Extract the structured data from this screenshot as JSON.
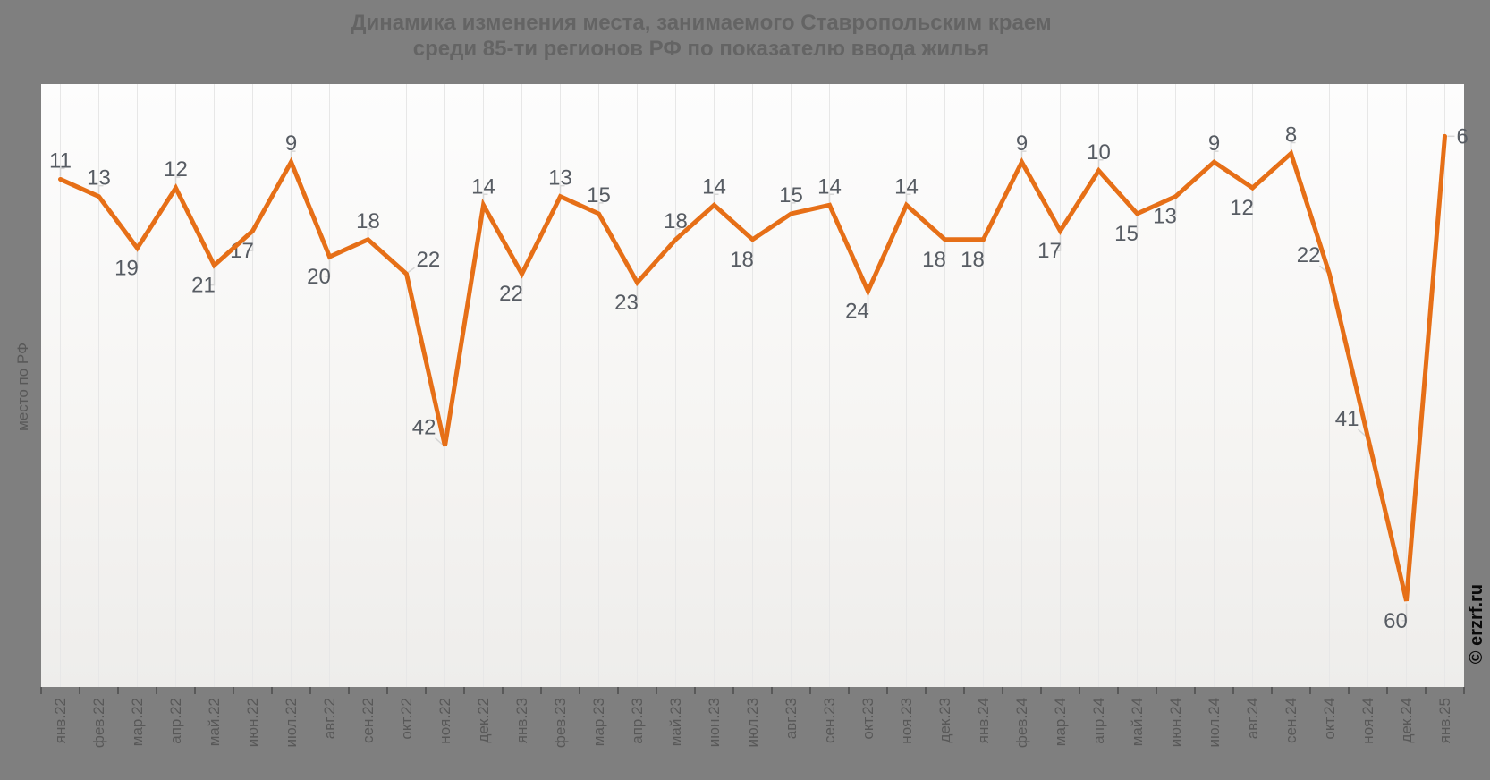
{
  "title": {
    "line1": "Динамика изменения места, занимаемого Ставропольским краем",
    "line2": "среди 85-ти регионов РФ по показателю ввода жилья"
  },
  "y_axis_label": "место по РФ",
  "watermark": "© erzrf.ru",
  "colors": {
    "background": "#7f7f7f",
    "plot_top": "#fdfdfd",
    "plot_bottom": "#eeedeb",
    "line": "#e66f17",
    "grid": "#e7e7e7",
    "tick": "#4d4d4d",
    "data_label": "#575c63",
    "axis_label": "#585858",
    "title_text": "#646464",
    "leader": "#d6d6d6",
    "watermark_text": "#0a0a0a"
  },
  "chart_data": {
    "type": "line",
    "title": "Динамика изменения места, занимаемого Ставропольским краем среди 85-ти регионов РФ по показателю ввода жилья",
    "xlabel": "",
    "ylabel": "место по РФ",
    "categories": [
      "янв.22",
      "фев.22",
      "мар.22",
      "апр.22",
      "май.22",
      "июн.22",
      "июл.22",
      "авг.22",
      "сен.22",
      "окт.22",
      "ноя.22",
      "дек.22",
      "янв.23",
      "фев.23",
      "мар.23",
      "апр.23",
      "май.23",
      "июн.23",
      "июл.23",
      "авг.23",
      "сен.23",
      "окт.23",
      "ноя.23",
      "дек.23",
      "янв.24",
      "фев.24",
      "мар.24",
      "апр.24",
      "май.24",
      "июн.24",
      "июл.24",
      "авг.24",
      "сен.24",
      "окт.24",
      "ноя.24",
      "дек.24",
      "янв.25"
    ],
    "values": [
      11,
      13,
      19,
      12,
      21,
      17,
      9,
      20,
      18,
      22,
      42,
      14,
      22,
      13,
      15,
      23,
      18,
      14,
      18,
      15,
      14,
      24,
      14,
      18,
      18,
      9,
      17,
      10,
      15,
      13,
      9,
      12,
      8,
      22,
      41,
      60,
      6
    ],
    "series_name": "место по РФ",
    "y_inverted": true,
    "ylim": [
      0,
      70
    ],
    "grid": "vertical-only",
    "legend": "none",
    "label_positions": [
      "above",
      "above",
      "below",
      "above",
      "below",
      "below",
      "above",
      "below",
      "above",
      "upright",
      "left",
      "above",
      "below",
      "above",
      "above",
      "below",
      "above",
      "above",
      "below",
      "above",
      "above",
      "below",
      "above",
      "below",
      "below",
      "above",
      "below",
      "above",
      "below",
      "below",
      "above",
      "below",
      "above",
      "left",
      "left",
      "below",
      "right"
    ]
  }
}
